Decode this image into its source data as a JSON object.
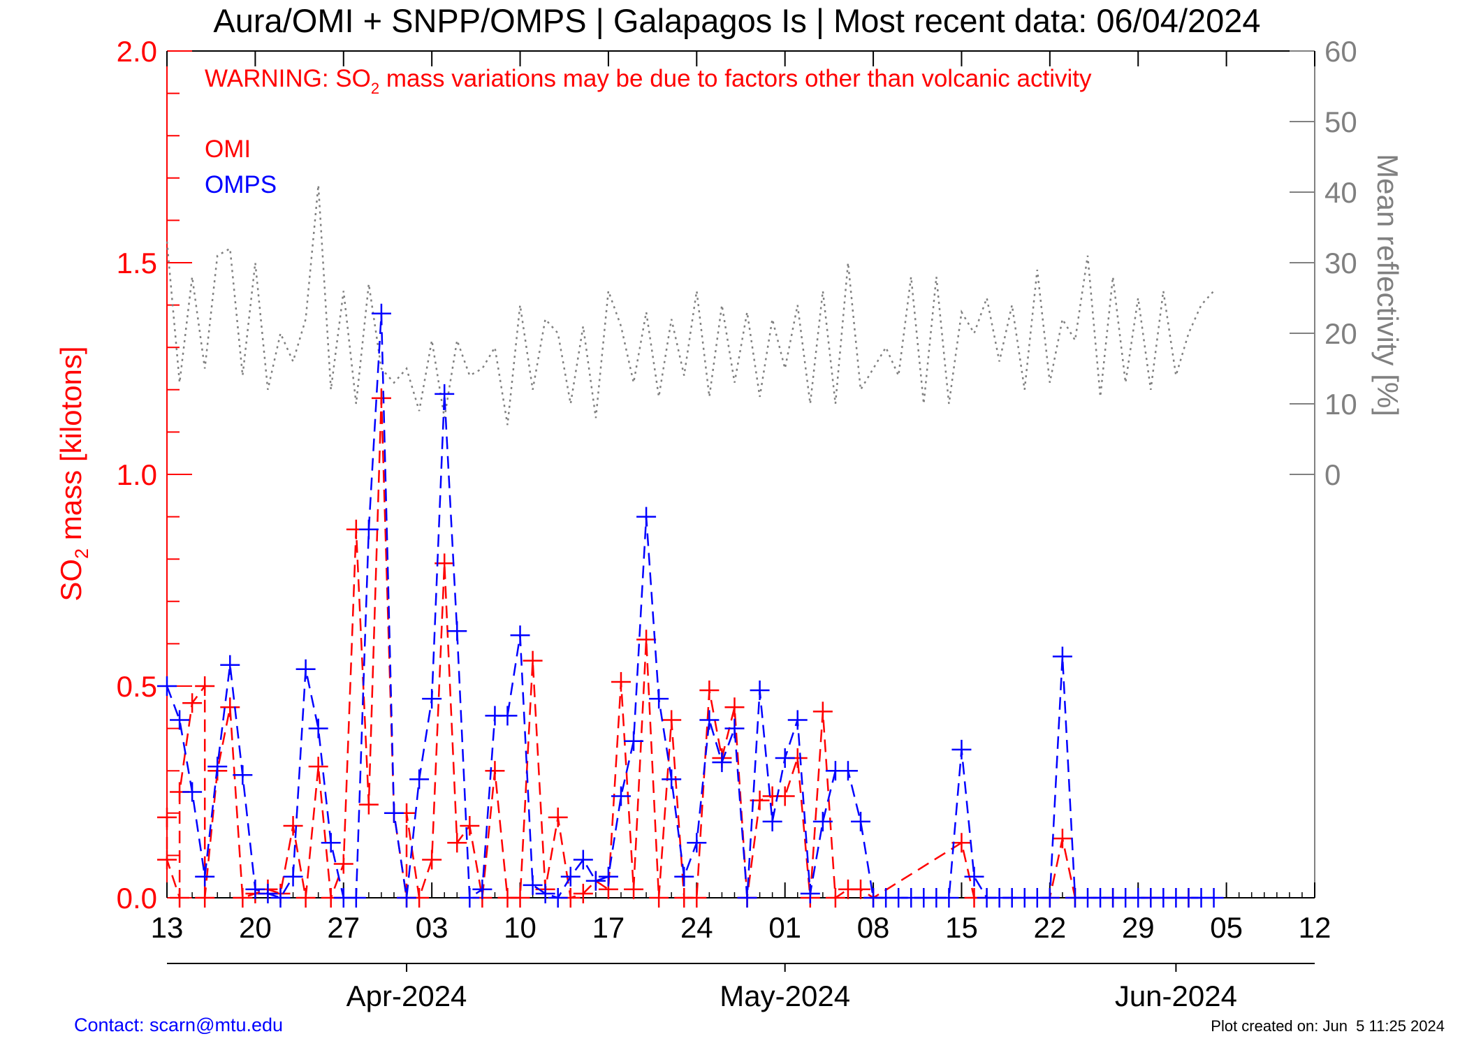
{
  "title": "Aura/OMI + SNPP/OMPS | Galapagos Is | Most recent data: 06/04/2024",
  "warning": {
    "prefix": "WARNING: SO",
    "sub": "2",
    "suffix": " mass variations may be due to factors other than volcanic activity"
  },
  "legend": [
    {
      "name": "OMI",
      "color": "#ff0000"
    },
    {
      "name": "OMPS",
      "color": "#0000ff"
    }
  ],
  "ylabel_left": {
    "prefix": "SO",
    "sub": "2",
    "suffix": " mass [kilotons]"
  },
  "ylabel_right": "Mean reflectivity [%]",
  "contact": "Contact: scarn@mtu.edu",
  "created": "Plot created on: Jun  5 11:25 2024",
  "colors": {
    "omi": "#ff0000",
    "omps": "#0000ff",
    "reflectivity": "#808080",
    "axis": "#000000"
  },
  "chart_data": {
    "type": "line",
    "x_unit": "date",
    "x_range": [
      "2024-03-13",
      "2024-06-12"
    ],
    "x_ticks": [
      {
        "date": "2024-03-13",
        "label": "13"
      },
      {
        "date": "2024-03-20",
        "label": "20"
      },
      {
        "date": "2024-03-27",
        "label": "27"
      },
      {
        "date": "2024-04-03",
        "label": "03"
      },
      {
        "date": "2024-04-10",
        "label": "10"
      },
      {
        "date": "2024-04-17",
        "label": "17"
      },
      {
        "date": "2024-04-24",
        "label": "24"
      },
      {
        "date": "2024-05-01",
        "label": "01"
      },
      {
        "date": "2024-05-08",
        "label": "08"
      },
      {
        "date": "2024-05-15",
        "label": "15"
      },
      {
        "date": "2024-05-22",
        "label": "22"
      },
      {
        "date": "2024-05-29",
        "label": "29"
      },
      {
        "date": "2024-06-05",
        "label": "05"
      },
      {
        "date": "2024-06-12",
        "label": "12"
      }
    ],
    "month_ticks": [
      {
        "date": "2024-04-01",
        "label": "Apr-2024"
      },
      {
        "date": "2024-05-01",
        "label": "May-2024"
      },
      {
        "date": "2024-06-01",
        "label": "Jun-2024"
      }
    ],
    "y_left": {
      "min": 0,
      "max": 2.0,
      "ticks": [
        "0.0",
        "0.5",
        "1.0",
        "1.5",
        "2.0"
      ],
      "minor_step": 0.1
    },
    "y_right": {
      "min": -60,
      "max": 60,
      "ticks": [
        0,
        10,
        20,
        30,
        40,
        50,
        60
      ]
    },
    "series": [
      {
        "name": "OMI",
        "style": "dashed",
        "marker": "plus",
        "points": [
          [
            "2024-03-13",
            0.19
          ],
          [
            "2024-03-13",
            0.09
          ],
          [
            "2024-03-14",
            0.0
          ],
          [
            "2024-03-14",
            0.25
          ],
          [
            "2024-03-15",
            0.46
          ],
          [
            "2024-03-16",
            0.5
          ],
          [
            "2024-03-16",
            0.0
          ],
          [
            "2024-03-17",
            0.3
          ],
          [
            "2024-03-18",
            0.45
          ],
          [
            "2024-03-19",
            0.0
          ],
          [
            "2024-03-20",
            0.01
          ],
          [
            "2024-03-21",
            0.02
          ],
          [
            "2024-03-22",
            0.01
          ],
          [
            "2024-03-23",
            0.17
          ],
          [
            "2024-03-24",
            0.0
          ],
          [
            "2024-03-25",
            0.31
          ],
          [
            "2024-03-26",
            0.0
          ],
          [
            "2024-03-27",
            0.08
          ],
          [
            "2024-03-28",
            0.87
          ],
          [
            "2024-03-29",
            0.22
          ],
          [
            "2024-03-30",
            1.18
          ],
          [
            "2024-03-31",
            0.2
          ],
          [
            "2024-04-01",
            0.0
          ],
          [
            "2024-04-01",
            0.2
          ],
          [
            "2024-04-02",
            0.0
          ],
          [
            "2024-04-03",
            0.09
          ],
          [
            "2024-04-04",
            0.79
          ],
          [
            "2024-04-05",
            0.13
          ],
          [
            "2024-04-06",
            0.17
          ],
          [
            "2024-04-07",
            0.0
          ],
          [
            "2024-04-08",
            0.3
          ],
          [
            "2024-04-09",
            0.0
          ],
          [
            "2024-04-10",
            0.0
          ],
          [
            "2024-04-11",
            0.56
          ],
          [
            "2024-04-12",
            0.02
          ],
          [
            "2024-04-13",
            0.19
          ],
          [
            "2024-04-14",
            0.0
          ],
          [
            "2024-04-15",
            0.01
          ],
          [
            "2024-04-16",
            0.04
          ],
          [
            "2024-04-17",
            0.02
          ],
          [
            "2024-04-18",
            0.51
          ],
          [
            "2024-04-19",
            0.02
          ],
          [
            "2024-04-20",
            0.61
          ],
          [
            "2024-04-21",
            0.0
          ],
          [
            "2024-04-22",
            0.42
          ],
          [
            "2024-04-23",
            0.0
          ],
          [
            "2024-04-24",
            0.0
          ],
          [
            "2024-04-25",
            0.49
          ],
          [
            "2024-04-26",
            0.33
          ],
          [
            "2024-04-27",
            0.45
          ],
          [
            "2024-04-28",
            0.0
          ],
          [
            "2024-04-29",
            0.23
          ],
          [
            "2024-04-30",
            0.24
          ],
          [
            "2024-05-01",
            0.24
          ],
          [
            "2024-05-02",
            0.33
          ],
          [
            "2024-05-03",
            0.0
          ],
          [
            "2024-05-04",
            0.44
          ],
          [
            "2024-05-05",
            0.0
          ],
          [
            "2024-05-06",
            0.02
          ],
          [
            "2024-05-07",
            0.02
          ],
          [
            "2024-05-08",
            0.0
          ],
          [
            "2024-05-15",
            0.13
          ],
          [
            "2024-05-16",
            0.0
          ],
          [
            "2024-05-22",
            0.0
          ],
          [
            "2024-05-23",
            0.14
          ],
          [
            "2024-05-24",
            0.0
          ],
          [
            "2024-05-27",
            0.0
          ],
          [
            "2024-05-30",
            0.0
          ],
          [
            "2024-06-02",
            0.0
          ]
        ]
      },
      {
        "name": "OMPS",
        "style": "dashed",
        "marker": "plus",
        "points": [
          [
            "2024-03-13",
            0.5
          ],
          [
            "2024-03-14",
            0.42
          ],
          [
            "2024-03-15",
            0.25
          ],
          [
            "2024-03-16",
            0.05
          ],
          [
            "2024-03-17",
            0.31
          ],
          [
            "2024-03-18",
            0.55
          ],
          [
            "2024-03-19",
            0.29
          ],
          [
            "2024-03-20",
            0.02
          ],
          [
            "2024-03-21",
            0.01
          ],
          [
            "2024-03-22",
            0.0
          ],
          [
            "2024-03-23",
            0.05
          ],
          [
            "2024-03-24",
            0.54
          ],
          [
            "2024-03-25",
            0.4
          ],
          [
            "2024-03-26",
            0.13
          ],
          [
            "2024-03-27",
            0.0
          ],
          [
            "2024-03-28",
            0.0
          ],
          [
            "2024-03-29",
            0.87
          ],
          [
            "2024-03-30",
            1.38
          ],
          [
            "2024-03-31",
            0.2
          ],
          [
            "2024-04-01",
            0.0
          ],
          [
            "2024-04-02",
            0.28
          ],
          [
            "2024-04-03",
            0.47
          ],
          [
            "2024-04-04",
            1.19
          ],
          [
            "2024-04-05",
            0.63
          ],
          [
            "2024-04-06",
            0.0
          ],
          [
            "2024-04-07",
            0.02
          ],
          [
            "2024-04-08",
            0.43
          ],
          [
            "2024-04-09",
            0.43
          ],
          [
            "2024-04-10",
            0.62
          ],
          [
            "2024-04-11",
            0.03
          ],
          [
            "2024-04-12",
            0.01
          ],
          [
            "2024-04-13",
            0.0
          ],
          [
            "2024-04-14",
            0.05
          ],
          [
            "2024-04-15",
            0.09
          ],
          [
            "2024-04-16",
            0.04
          ],
          [
            "2024-04-17",
            0.05
          ],
          [
            "2024-04-18",
            0.24
          ],
          [
            "2024-04-19",
            0.37
          ],
          [
            "2024-04-20",
            0.9
          ],
          [
            "2024-04-21",
            0.47
          ],
          [
            "2024-04-22",
            0.28
          ],
          [
            "2024-04-23",
            0.05
          ],
          [
            "2024-04-24",
            0.13
          ],
          [
            "2024-04-25",
            0.42
          ],
          [
            "2024-04-26",
            0.32
          ],
          [
            "2024-04-27",
            0.4
          ],
          [
            "2024-04-28",
            0.0
          ],
          [
            "2024-04-29",
            0.49
          ],
          [
            "2024-04-30",
            0.18
          ],
          [
            "2024-05-01",
            0.33
          ],
          [
            "2024-05-02",
            0.42
          ],
          [
            "2024-05-03",
            0.01
          ],
          [
            "2024-05-04",
            0.18
          ],
          [
            "2024-05-05",
            0.3
          ],
          [
            "2024-05-06",
            0.3
          ],
          [
            "2024-05-07",
            0.18
          ],
          [
            "2024-05-08",
            0.0
          ],
          [
            "2024-05-09",
            0.0
          ],
          [
            "2024-05-10",
            0.0
          ],
          [
            "2024-05-11",
            0.0
          ],
          [
            "2024-05-12",
            0.0
          ],
          [
            "2024-05-13",
            0.0
          ],
          [
            "2024-05-14",
            0.0
          ],
          [
            "2024-05-15",
            0.35
          ],
          [
            "2024-05-16",
            0.05
          ],
          [
            "2024-05-17",
            0.0
          ],
          [
            "2024-05-18",
            0.0
          ],
          [
            "2024-05-19",
            0.0
          ],
          [
            "2024-05-20",
            0.0
          ],
          [
            "2024-05-21",
            0.0
          ],
          [
            "2024-05-22",
            0.0
          ],
          [
            "2024-05-23",
            0.57
          ],
          [
            "2024-05-24",
            0.0
          ],
          [
            "2024-05-25",
            0.0
          ],
          [
            "2024-05-26",
            0.0
          ],
          [
            "2024-05-27",
            0.0
          ],
          [
            "2024-05-28",
            0.0
          ],
          [
            "2024-05-29",
            0.0
          ],
          [
            "2024-05-30",
            0.0
          ],
          [
            "2024-05-31",
            0.0
          ],
          [
            "2024-06-01",
            0.0
          ],
          [
            "2024-06-02",
            0.0
          ],
          [
            "2024-06-03",
            0.0
          ],
          [
            "2024-06-04",
            0.0
          ]
        ]
      },
      {
        "name": "Mean reflectivity",
        "axis": "right",
        "style": "dotted",
        "points": [
          [
            "2024-03-13",
            33
          ],
          [
            "2024-03-14",
            13
          ],
          [
            "2024-03-15",
            28
          ],
          [
            "2024-03-16",
            15
          ],
          [
            "2024-03-17",
            31
          ],
          [
            "2024-03-18",
            32
          ],
          [
            "2024-03-19",
            14
          ],
          [
            "2024-03-20",
            30
          ],
          [
            "2024-03-21",
            12
          ],
          [
            "2024-03-22",
            20
          ],
          [
            "2024-03-23",
            16
          ],
          [
            "2024-03-24",
            22
          ],
          [
            "2024-03-25",
            41
          ],
          [
            "2024-03-26",
            12
          ],
          [
            "2024-03-27",
            26
          ],
          [
            "2024-03-28",
            10
          ],
          [
            "2024-03-29",
            27
          ],
          [
            "2024-03-30",
            15
          ],
          [
            "2024-03-31",
            13
          ],
          [
            "2024-04-01",
            15
          ],
          [
            "2024-04-02",
            9
          ],
          [
            "2024-04-03",
            19
          ],
          [
            "2024-04-04",
            8
          ],
          [
            "2024-04-05",
            19
          ],
          [
            "2024-04-06",
            14
          ],
          [
            "2024-04-07",
            15
          ],
          [
            "2024-04-08",
            18
          ],
          [
            "2024-04-09",
            7
          ],
          [
            "2024-04-10",
            24
          ],
          [
            "2024-04-11",
            12
          ],
          [
            "2024-04-12",
            22
          ],
          [
            "2024-04-13",
            20
          ],
          [
            "2024-04-14",
            10
          ],
          [
            "2024-04-15",
            21
          ],
          [
            "2024-04-16",
            8
          ],
          [
            "2024-04-17",
            26
          ],
          [
            "2024-04-18",
            21
          ],
          [
            "2024-04-19",
            13
          ],
          [
            "2024-04-20",
            23
          ],
          [
            "2024-04-21",
            11
          ],
          [
            "2024-04-22",
            22
          ],
          [
            "2024-04-23",
            14
          ],
          [
            "2024-04-24",
            26
          ],
          [
            "2024-04-25",
            11
          ],
          [
            "2024-04-26",
            24
          ],
          [
            "2024-04-27",
            13
          ],
          [
            "2024-04-28",
            23
          ],
          [
            "2024-04-29",
            11
          ],
          [
            "2024-04-30",
            22
          ],
          [
            "2024-05-01",
            15
          ],
          [
            "2024-05-02",
            24
          ],
          [
            "2024-05-03",
            10
          ],
          [
            "2024-05-04",
            26
          ],
          [
            "2024-05-05",
            10
          ],
          [
            "2024-05-06",
            30
          ],
          [
            "2024-05-07",
            12
          ],
          [
            "2024-05-08",
            15
          ],
          [
            "2024-05-09",
            18
          ],
          [
            "2024-05-10",
            14
          ],
          [
            "2024-05-11",
            28
          ],
          [
            "2024-05-12",
            10
          ],
          [
            "2024-05-13",
            28
          ],
          [
            "2024-05-14",
            10
          ],
          [
            "2024-05-15",
            23
          ],
          [
            "2024-05-16",
            20
          ],
          [
            "2024-05-17",
            25
          ],
          [
            "2024-05-18",
            16
          ],
          [
            "2024-05-19",
            24
          ],
          [
            "2024-05-20",
            12
          ],
          [
            "2024-05-21",
            29
          ],
          [
            "2024-05-22",
            13
          ],
          [
            "2024-05-23",
            22
          ],
          [
            "2024-05-24",
            19
          ],
          [
            "2024-05-25",
            31
          ],
          [
            "2024-05-26",
            11
          ],
          [
            "2024-05-27",
            28
          ],
          [
            "2024-05-28",
            13
          ],
          [
            "2024-05-29",
            25
          ],
          [
            "2024-05-30",
            12
          ],
          [
            "2024-05-31",
            26
          ],
          [
            "2024-06-01",
            14
          ],
          [
            "2024-06-02",
            20
          ],
          [
            "2024-06-03",
            24
          ],
          [
            "2024-06-04",
            26
          ]
        ]
      }
    ],
    "grid": false,
    "legend_position": "top-left"
  }
}
